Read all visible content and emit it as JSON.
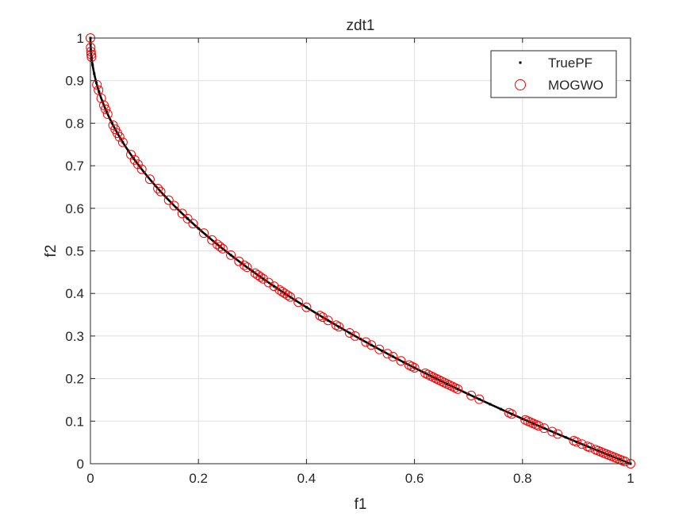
{
  "chart_data": {
    "type": "scatter",
    "title": "zdt1",
    "xlabel": "f1",
    "ylabel": "f2",
    "xlim": [
      0,
      1
    ],
    "ylim": [
      0,
      1
    ],
    "xticks": [
      0,
      0.2,
      0.4,
      0.6,
      0.8,
      1
    ],
    "xtick_labels": [
      "0",
      "0.2",
      "0.4",
      "0.6",
      "0.8",
      "1"
    ],
    "yticks": [
      0,
      0.1,
      0.2,
      0.3,
      0.4,
      0.5,
      0.6,
      0.7,
      0.8,
      0.9,
      1
    ],
    "ytick_labels": [
      "0",
      "0.1",
      "0.2",
      "0.3",
      "0.4",
      "0.5",
      "0.6",
      "0.7",
      "0.8",
      "0.9",
      "1"
    ],
    "grid": true,
    "legend_position": "top-right",
    "series": [
      {
        "name": "TruePF",
        "marker": "point",
        "color": "#000000",
        "relation": "f2 = 1 - sqrt(f1)",
        "x": [
          0,
          0.0002,
          0.0008,
          0.002,
          0.004,
          0.007,
          0.011,
          0.016,
          0.022,
          0.03,
          0.04,
          0.05,
          0.06,
          0.07,
          0.08,
          0.09,
          0.1,
          0.12,
          0.14,
          0.16,
          0.18,
          0.2,
          0.22,
          0.24,
          0.26,
          0.28,
          0.3,
          0.32,
          0.34,
          0.36,
          0.38,
          0.4,
          0.42,
          0.44,
          0.46,
          0.48,
          0.5,
          0.52,
          0.54,
          0.56,
          0.58,
          0.6,
          0.62,
          0.64,
          0.66,
          0.68,
          0.7,
          0.72,
          0.74,
          0.76,
          0.78,
          0.8,
          0.82,
          0.84,
          0.86,
          0.88,
          0.9,
          0.92,
          0.94,
          0.96,
          0.98,
          1.0
        ]
      },
      {
        "name": "MOGWO",
        "marker": "circle",
        "color": "#ff0000",
        "relation": "f2 = 1 - sqrt(f1)",
        "x": [
          0.0,
          0.0005,
          0.001,
          0.0015,
          0.002,
          0.012,
          0.015,
          0.02,
          0.025,
          0.028,
          0.032,
          0.042,
          0.046,
          0.05,
          0.054,
          0.06,
          0.075,
          0.082,
          0.088,
          0.095,
          0.11,
          0.125,
          0.13,
          0.145,
          0.155,
          0.17,
          0.18,
          0.19,
          0.21,
          0.225,
          0.235,
          0.24,
          0.245,
          0.26,
          0.275,
          0.285,
          0.29,
          0.305,
          0.31,
          0.315,
          0.32,
          0.33,
          0.34,
          0.35,
          0.355,
          0.36,
          0.365,
          0.37,
          0.385,
          0.4,
          0.425,
          0.43,
          0.44,
          0.455,
          0.46,
          0.48,
          0.49,
          0.51,
          0.52,
          0.535,
          0.55,
          0.56,
          0.575,
          0.59,
          0.595,
          0.6,
          0.62,
          0.625,
          0.63,
          0.635,
          0.64,
          0.645,
          0.65,
          0.655,
          0.66,
          0.665,
          0.67,
          0.675,
          0.68,
          0.705,
          0.72,
          0.775,
          0.78,
          0.805,
          0.81,
          0.815,
          0.82,
          0.825,
          0.83,
          0.84,
          0.855,
          0.865,
          0.895,
          0.9,
          0.91,
          0.92,
          0.925,
          0.935,
          0.94,
          0.945,
          0.95,
          0.955,
          0.96,
          0.965,
          0.97,
          0.975,
          0.98,
          0.985,
          0.99,
          1.0
        ]
      }
    ]
  }
}
